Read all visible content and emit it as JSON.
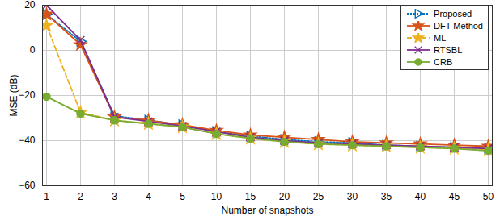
{
  "chart_data": {
    "type": "line",
    "xlabel": "Number of snapshots",
    "ylabel": "MSE (dB)",
    "categories": [
      "1",
      "2",
      "3",
      "4",
      "5",
      "10",
      "15",
      "20",
      "25",
      "30",
      "35",
      "40",
      "45",
      "50"
    ],
    "ylim": [
      -60,
      20
    ],
    "yticks": [
      -60,
      -40,
      -20,
      0,
      20
    ],
    "grid": true,
    "legend": "northeast",
    "series": [
      {
        "name": "Proposed",
        "color": "#0072BD",
        "marker": "triangle-right",
        "line_style": "dotted",
        "values": [
          16,
          4,
          -29,
          -31,
          -33,
          -36,
          -38,
          -39.5,
          -40.5,
          -41,
          -42,
          -42.5,
          -43,
          -43.5
        ]
      },
      {
        "name": "DFT Method",
        "color": "#D95319",
        "marker": "star",
        "line_style": "solid",
        "values": [
          16,
          2.5,
          -29.5,
          -31,
          -33,
          -35.5,
          -37.5,
          -38.5,
          -39.5,
          -40.5,
          -41,
          -41.5,
          -42,
          -42.5
        ]
      },
      {
        "name": "ML",
        "color": "#EDB120",
        "marker": "star",
        "line_style": "dashed",
        "values": [
          11,
          -27.5,
          -31,
          -32.5,
          -34,
          -37,
          -39,
          -40.5,
          -41.5,
          -42,
          -42.5,
          -43,
          -43.5,
          -44
        ]
      },
      {
        "name": "RTSBL",
        "color": "#7E2F8E",
        "marker": "x",
        "line_style": "solid",
        "values": [
          20,
          4.5,
          -29.5,
          -31.5,
          -33.5,
          -36,
          -38.5,
          -40,
          -41,
          -41.5,
          -42,
          -42.5,
          -43,
          -43.5
        ]
      },
      {
        "name": "CRB",
        "color": "#77AC30",
        "marker": "circle",
        "line_style": "solid",
        "values": [
          -20.5,
          -28,
          -31,
          -32.5,
          -34,
          -37,
          -39,
          -40.5,
          -41.5,
          -42,
          -42.5,
          -43,
          -43.5,
          -44.5
        ]
      }
    ]
  }
}
